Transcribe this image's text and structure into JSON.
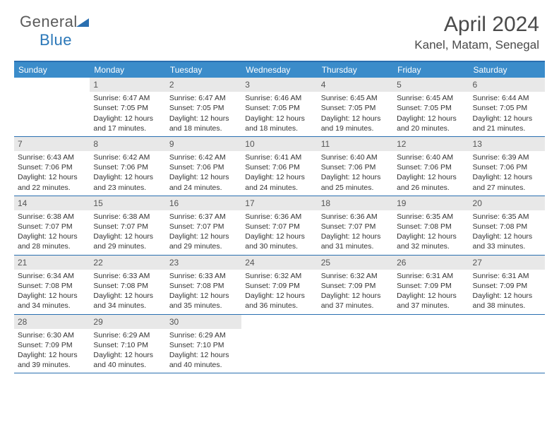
{
  "logo": {
    "word1": "General",
    "word2": "Blue"
  },
  "title": "April 2024",
  "location": "Kanel, Matam, Senegal",
  "colors": {
    "header_bg": "#3b8cca",
    "header_rule": "#2a6fb0",
    "daynum_bg": "#e8e8e8",
    "text": "#333333",
    "logo_gray": "#5a5a5a",
    "logo_blue": "#2a77b8",
    "white": "#ffffff"
  },
  "day_names": [
    "Sunday",
    "Monday",
    "Tuesday",
    "Wednesday",
    "Thursday",
    "Friday",
    "Saturday"
  ],
  "labels": {
    "sunrise": "Sunrise:",
    "sunset": "Sunset:",
    "daylight": "Daylight:"
  },
  "first_weekday_index": 1,
  "days": [
    {
      "n": 1,
      "sr": "6:47 AM",
      "ss": "7:05 PM",
      "dl": "12 hours and 17 minutes."
    },
    {
      "n": 2,
      "sr": "6:47 AM",
      "ss": "7:05 PM",
      "dl": "12 hours and 18 minutes."
    },
    {
      "n": 3,
      "sr": "6:46 AM",
      "ss": "7:05 PM",
      "dl": "12 hours and 18 minutes."
    },
    {
      "n": 4,
      "sr": "6:45 AM",
      "ss": "7:05 PM",
      "dl": "12 hours and 19 minutes."
    },
    {
      "n": 5,
      "sr": "6:45 AM",
      "ss": "7:05 PM",
      "dl": "12 hours and 20 minutes."
    },
    {
      "n": 6,
      "sr": "6:44 AM",
      "ss": "7:05 PM",
      "dl": "12 hours and 21 minutes."
    },
    {
      "n": 7,
      "sr": "6:43 AM",
      "ss": "7:06 PM",
      "dl": "12 hours and 22 minutes."
    },
    {
      "n": 8,
      "sr": "6:42 AM",
      "ss": "7:06 PM",
      "dl": "12 hours and 23 minutes."
    },
    {
      "n": 9,
      "sr": "6:42 AM",
      "ss": "7:06 PM",
      "dl": "12 hours and 24 minutes."
    },
    {
      "n": 10,
      "sr": "6:41 AM",
      "ss": "7:06 PM",
      "dl": "12 hours and 24 minutes."
    },
    {
      "n": 11,
      "sr": "6:40 AM",
      "ss": "7:06 PM",
      "dl": "12 hours and 25 minutes."
    },
    {
      "n": 12,
      "sr": "6:40 AM",
      "ss": "7:06 PM",
      "dl": "12 hours and 26 minutes."
    },
    {
      "n": 13,
      "sr": "6:39 AM",
      "ss": "7:06 PM",
      "dl": "12 hours and 27 minutes."
    },
    {
      "n": 14,
      "sr": "6:38 AM",
      "ss": "7:07 PM",
      "dl": "12 hours and 28 minutes."
    },
    {
      "n": 15,
      "sr": "6:38 AM",
      "ss": "7:07 PM",
      "dl": "12 hours and 29 minutes."
    },
    {
      "n": 16,
      "sr": "6:37 AM",
      "ss": "7:07 PM",
      "dl": "12 hours and 29 minutes."
    },
    {
      "n": 17,
      "sr": "6:36 AM",
      "ss": "7:07 PM",
      "dl": "12 hours and 30 minutes."
    },
    {
      "n": 18,
      "sr": "6:36 AM",
      "ss": "7:07 PM",
      "dl": "12 hours and 31 minutes."
    },
    {
      "n": 19,
      "sr": "6:35 AM",
      "ss": "7:08 PM",
      "dl": "12 hours and 32 minutes."
    },
    {
      "n": 20,
      "sr": "6:35 AM",
      "ss": "7:08 PM",
      "dl": "12 hours and 33 minutes."
    },
    {
      "n": 21,
      "sr": "6:34 AM",
      "ss": "7:08 PM",
      "dl": "12 hours and 34 minutes."
    },
    {
      "n": 22,
      "sr": "6:33 AM",
      "ss": "7:08 PM",
      "dl": "12 hours and 34 minutes."
    },
    {
      "n": 23,
      "sr": "6:33 AM",
      "ss": "7:08 PM",
      "dl": "12 hours and 35 minutes."
    },
    {
      "n": 24,
      "sr": "6:32 AM",
      "ss": "7:09 PM",
      "dl": "12 hours and 36 minutes."
    },
    {
      "n": 25,
      "sr": "6:32 AM",
      "ss": "7:09 PM",
      "dl": "12 hours and 37 minutes."
    },
    {
      "n": 26,
      "sr": "6:31 AM",
      "ss": "7:09 PM",
      "dl": "12 hours and 37 minutes."
    },
    {
      "n": 27,
      "sr": "6:31 AM",
      "ss": "7:09 PM",
      "dl": "12 hours and 38 minutes."
    },
    {
      "n": 28,
      "sr": "6:30 AM",
      "ss": "7:09 PM",
      "dl": "12 hours and 39 minutes."
    },
    {
      "n": 29,
      "sr": "6:29 AM",
      "ss": "7:10 PM",
      "dl": "12 hours and 40 minutes."
    },
    {
      "n": 30,
      "sr": "6:29 AM",
      "ss": "7:10 PM",
      "dl": "12 hours and 40 minutes."
    }
  ]
}
